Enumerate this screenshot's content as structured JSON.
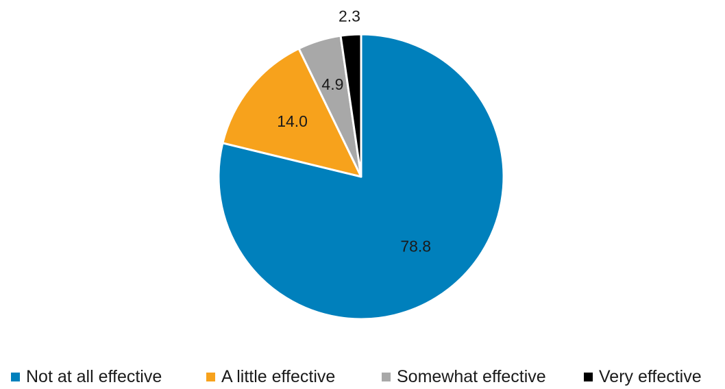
{
  "chart_data": {
    "type": "pie",
    "title": "",
    "start_angle_deg": 0,
    "direction": "clockwise",
    "slices": [
      {
        "label": "Not at all effective",
        "value": 78.8,
        "value_label": "78.8",
        "color": "#0080BC"
      },
      {
        "label": "A little effective",
        "value": 14.0,
        "value_label": "14.0",
        "color": "#F7A21C"
      },
      {
        "label": "Somewhat effective",
        "value": 4.9,
        "value_label": "4.9",
        "color": "#A8A8A8"
      },
      {
        "label": "Very effective",
        "value": 2.3,
        "value_label": "2.3",
        "color": "#000000"
      }
    ],
    "legend_position": "bottom"
  }
}
